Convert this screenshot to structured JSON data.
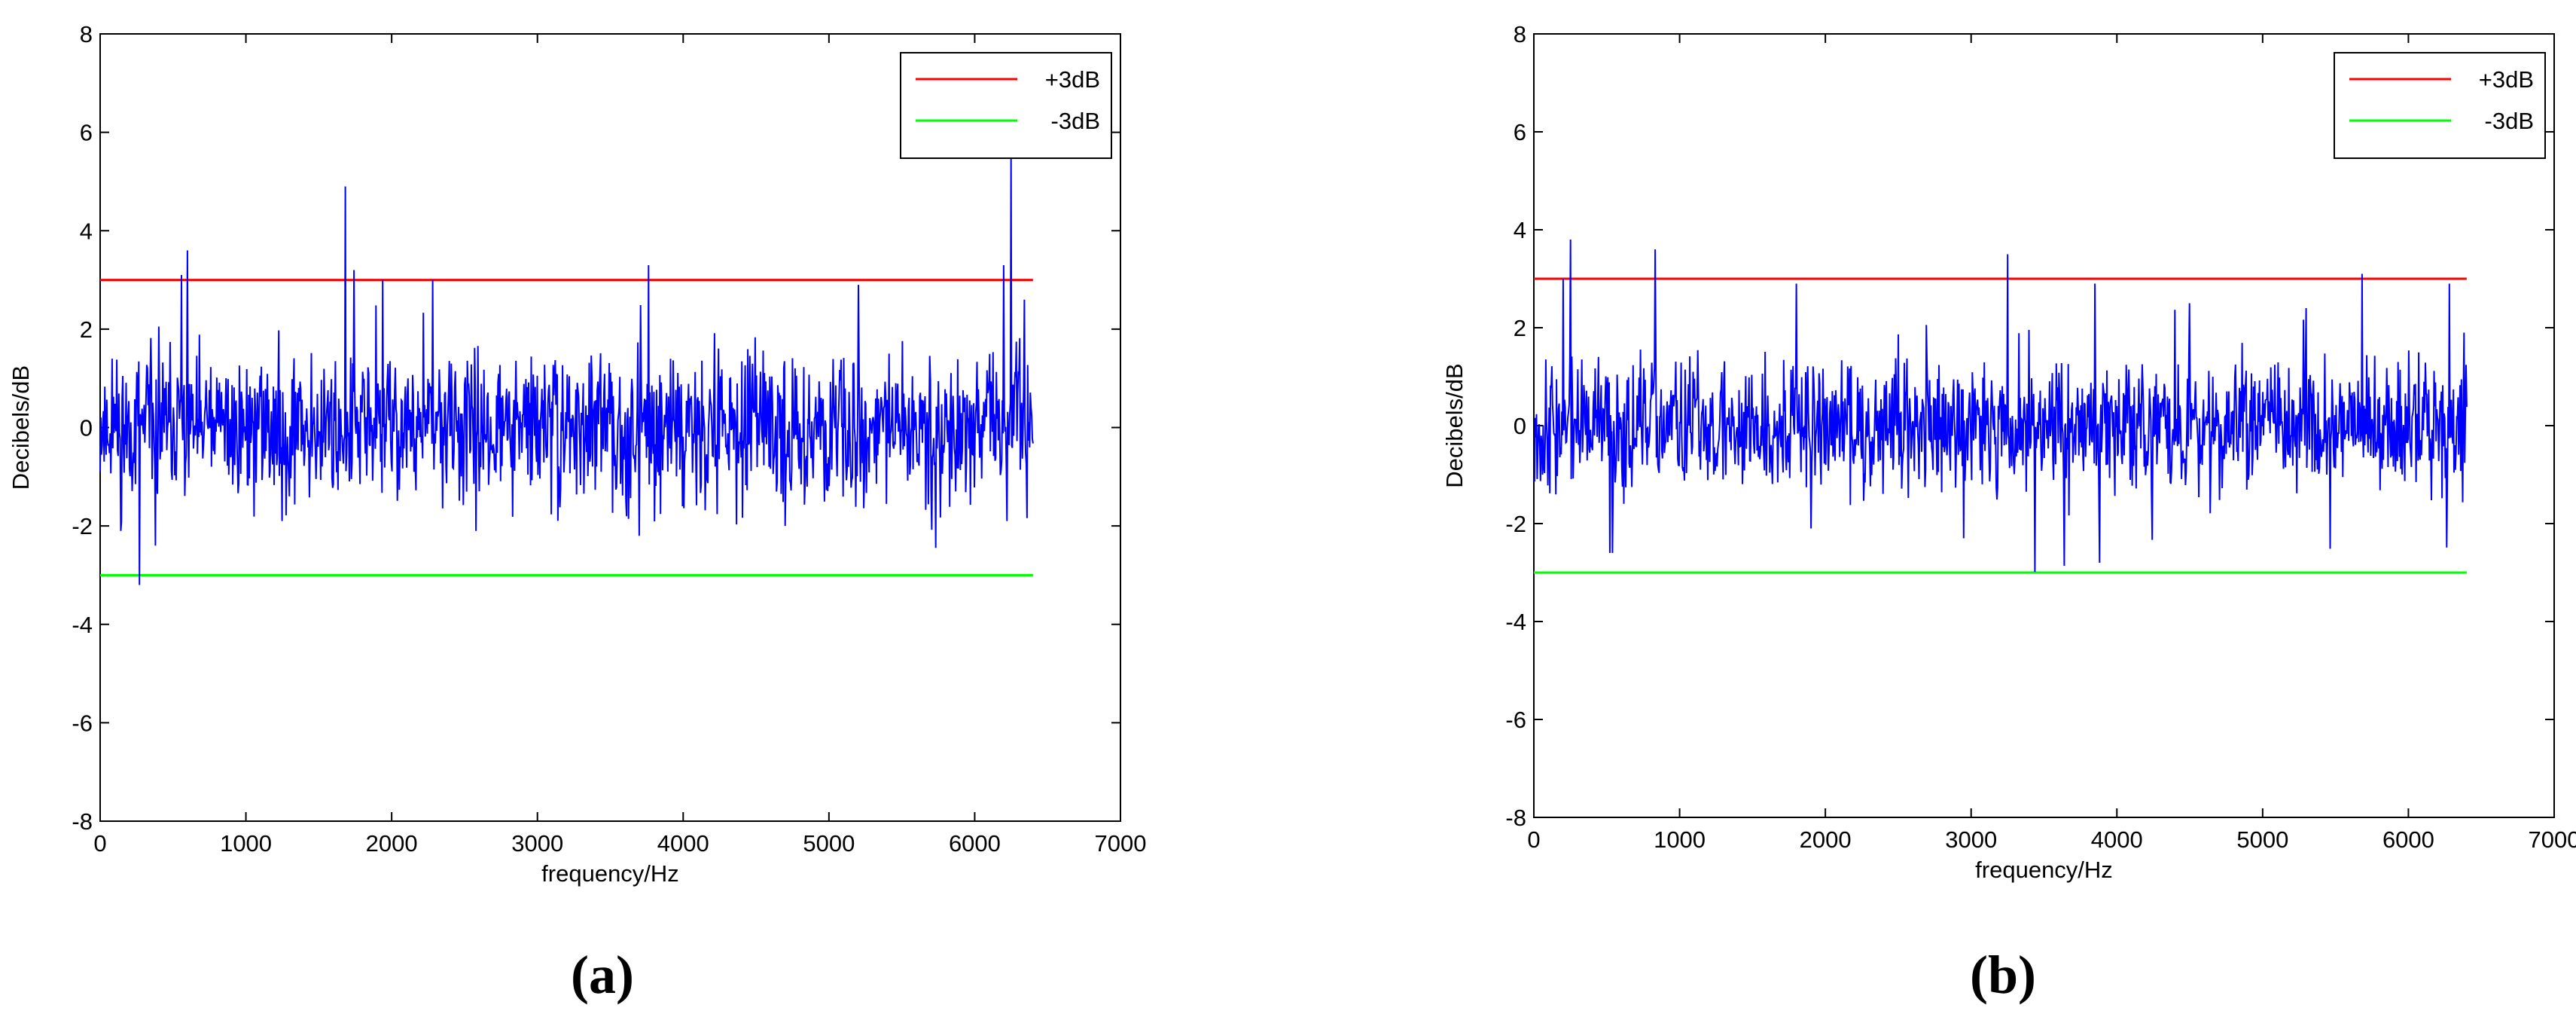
{
  "figure": {
    "panel_a_label": "a",
    "panel_b_label": "b"
  },
  "chart_data": [
    {
      "type": "line",
      "panel": "a",
      "xlabel": "frequency/Hz",
      "ylabel": "Decibels/dB",
      "xlim": [
        0,
        7000
      ],
      "ylim": [
        -8,
        8
      ],
      "xticks": [
        0,
        1000,
        2000,
        3000,
        4000,
        5000,
        6000,
        7000
      ],
      "yticks": [
        -8,
        -6,
        -4,
        -2,
        0,
        2,
        4,
        6,
        8
      ],
      "grid": false,
      "legend_position": "top-right",
      "series": [
        {
          "name": "+3dB",
          "color": "#ff0000",
          "x": [
            0,
            6400
          ],
          "y": [
            3,
            3
          ]
        },
        {
          "name": "-3dB",
          "color": "#00ff00",
          "x": [
            0,
            6400
          ],
          "y": [
            -3,
            -3
          ]
        },
        {
          "color": "#0000ff",
          "x_range": [
            0,
            6400
          ],
          "noise": {
            "amplitude": 0.7,
            "seed": 11
          },
          "peaks": [
            [
              270,
              -3.2
            ],
            [
              380,
              -2.4
            ],
            [
              560,
              3.1
            ],
            [
              600,
              3.6
            ],
            [
              1680,
              4.9
            ],
            [
              1740,
              3.2
            ],
            [
              1940,
              3.0
            ],
            [
              2280,
              3.0
            ],
            [
              2580,
              -2.1
            ],
            [
              3760,
              3.3
            ],
            [
              3700,
              -2.2
            ],
            [
              4700,
              -2.0
            ],
            [
              5200,
              2.9
            ],
            [
              6200,
              3.3
            ],
            [
              6250,
              5.6
            ],
            [
              6220,
              -1.9
            ],
            [
              6340,
              2.6
            ],
            [
              1250,
              -1.9
            ],
            [
              140,
              -2.1
            ],
            [
              80,
              1.4
            ]
          ]
        }
      ]
    },
    {
      "type": "line",
      "panel": "b",
      "xlabel": "frequency/Hz",
      "ylabel": "Decibels/dB",
      "xlim": [
        0,
        7000
      ],
      "ylim": [
        -8,
        8
      ],
      "xticks": [
        0,
        1000,
        2000,
        3000,
        4000,
        5000,
        6000,
        7000
      ],
      "yticks": [
        -8,
        -6,
        -4,
        -2,
        0,
        2,
        4,
        6,
        8
      ],
      "grid": false,
      "legend_position": "top-right",
      "series": [
        {
          "name": "+3dB",
          "color": "#ff0000",
          "x": [
            0,
            6400
          ],
          "y": [
            3,
            3
          ]
        },
        {
          "name": "-3dB",
          "color": "#00ff00",
          "x": [
            0,
            6400
          ],
          "y": [
            -3,
            -3
          ]
        },
        {
          "color": "#0000ff",
          "x_range": [
            0,
            6400
          ],
          "noise": {
            "amplitude": 0.65,
            "seed": 37
          },
          "peaks": [
            [
              250,
              3.8
            ],
            [
              200,
              3.0
            ],
            [
              520,
              -2.6
            ],
            [
              540,
              -2.6
            ],
            [
              830,
              3.6
            ],
            [
              1800,
              2.9
            ],
            [
              1900,
              -2.1
            ],
            [
              2950,
              -2.3
            ],
            [
              3250,
              3.5
            ],
            [
              3880,
              -2.8
            ],
            [
              3850,
              2.9
            ],
            [
              5680,
              3.1
            ],
            [
              6280,
              2.9
            ],
            [
              6380,
              1.9
            ],
            [
              4500,
              2.5
            ],
            [
              5300,
              2.4
            ],
            [
              60,
              -1.0
            ]
          ]
        }
      ]
    }
  ]
}
